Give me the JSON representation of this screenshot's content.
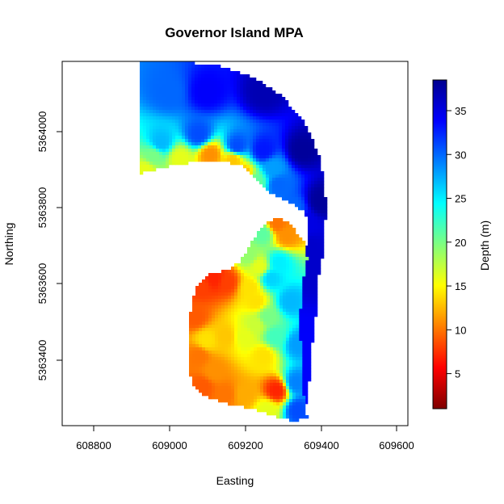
{
  "chart_data": {
    "type": "heatmap",
    "title": "Governor Island MPA",
    "xlabel": "Easting",
    "ylabel": "Northing",
    "xlim": [
      608720,
      609630
    ],
    "ylim": [
      5363240,
      5364180
    ],
    "x_ticks": [
      608800,
      609000,
      609200,
      609400,
      609600
    ],
    "y_ticks": [
      5363400,
      5363600,
      5363800,
      5364000
    ],
    "legend": {
      "label": "Depth (m)",
      "range": [
        1,
        38.5
      ],
      "ticks": [
        5,
        10,
        15,
        20,
        25,
        30,
        35
      ],
      "placement": "right",
      "colormap": [
        "#7f0000",
        "#ff0000",
        "#ff7f00",
        "#ffff00",
        "#7fff7f",
        "#00ffff",
        "#007fff",
        "#0000ff",
        "#00008f"
      ]
    },
    "regions": [
      {
        "name": "outer-arc",
        "outline": [
          [
            608925,
            5364180
          ],
          [
            609030,
            5364180
          ],
          [
            609130,
            5364170
          ],
          [
            609225,
            5364140
          ],
          [
            609300,
            5364090
          ],
          [
            609360,
            5364020
          ],
          [
            609400,
            5363930
          ],
          [
            609415,
            5363820
          ],
          [
            609410,
            5363700
          ],
          [
            609395,
            5363620
          ],
          [
            609390,
            5363540
          ],
          [
            609380,
            5363470
          ],
          [
            609375,
            5363380
          ],
          [
            609360,
            5363280
          ],
          [
            609340,
            5363260
          ],
          [
            609325,
            5363290
          ],
          [
            609330,
            5363360
          ],
          [
            609345,
            5363460
          ],
          [
            609345,
            5363570
          ],
          [
            609350,
            5363660
          ],
          [
            609370,
            5363730
          ],
          [
            609360,
            5363790
          ],
          [
            609320,
            5363815
          ],
          [
            609270,
            5363840
          ],
          [
            609235,
            5363875
          ],
          [
            609195,
            5363910
          ],
          [
            609135,
            5363925
          ],
          [
            609065,
            5363920
          ],
          [
            609000,
            5363910
          ],
          [
            608925,
            5363890
          ]
        ],
        "depth_points": [
          [
            609000,
            5364100,
            30
          ],
          [
            609100,
            5364100,
            34
          ],
          [
            609250,
            5364100,
            37
          ],
          [
            609350,
            5363950,
            38
          ],
          [
            609400,
            5363820,
            38
          ],
          [
            609390,
            5363650,
            36
          ],
          [
            609370,
            5363450,
            34
          ],
          [
            608980,
            5363970,
            27
          ],
          [
            609080,
            5363990,
            31
          ],
          [
            609180,
            5363960,
            31
          ],
          [
            609250,
            5363950,
            33
          ],
          [
            608940,
            5363900,
            16
          ],
          [
            608960,
            5363935,
            20
          ],
          [
            609030,
            5363930,
            16
          ],
          [
            609110,
            5363940,
            11
          ],
          [
            609170,
            5363925,
            13
          ],
          [
            609200,
            5363885,
            12
          ],
          [
            609230,
            5363870,
            21
          ],
          [
            609275,
            5363905,
            28
          ],
          [
            609290,
            5363860,
            30
          ],
          [
            609330,
            5363800,
            30
          ],
          [
            609360,
            5363760,
            35
          ],
          [
            609370,
            5363700,
            36
          ]
        ]
      },
      {
        "name": "island-shelf",
        "outline": [
          [
            609235,
            5363740
          ],
          [
            609265,
            5363770
          ],
          [
            609300,
            5363775
          ],
          [
            609320,
            5363760
          ],
          [
            609340,
            5363735
          ],
          [
            609360,
            5363710
          ],
          [
            609365,
            5363670
          ],
          [
            609350,
            5363600
          ],
          [
            609345,
            5363500
          ],
          [
            609350,
            5363400
          ],
          [
            609355,
            5363320
          ],
          [
            609365,
            5363260
          ],
          [
            609330,
            5363250
          ],
          [
            609280,
            5363265
          ],
          [
            609230,
            5363280
          ],
          [
            609140,
            5363300
          ],
          [
            609085,
            5363320
          ],
          [
            609060,
            5363350
          ],
          [
            609055,
            5363400
          ],
          [
            609055,
            5363500
          ],
          [
            609060,
            5363560
          ],
          [
            609080,
            5363610
          ],
          [
            609110,
            5363635
          ],
          [
            609150,
            5363640
          ],
          [
            609190,
            5363665
          ],
          [
            609210,
            5363700
          ]
        ],
        "depth_points": [
          [
            609085,
            5363600,
            8
          ],
          [
            609120,
            5363620,
            7
          ],
          [
            609155,
            5363610,
            8
          ],
          [
            609070,
            5363520,
            9
          ],
          [
            609100,
            5363460,
            14
          ],
          [
            609150,
            5363470,
            13
          ],
          [
            609200,
            5363470,
            16
          ],
          [
            609230,
            5363500,
            17
          ],
          [
            609260,
            5363520,
            20
          ],
          [
            609280,
            5363470,
            22
          ],
          [
            609215,
            5363595,
            14
          ],
          [
            609230,
            5363560,
            14
          ],
          [
            609240,
            5363650,
            16
          ],
          [
            609270,
            5363620,
            26
          ],
          [
            609290,
            5363660,
            25
          ],
          [
            609320,
            5363560,
            27
          ],
          [
            609340,
            5363450,
            28
          ],
          [
            609335,
            5363350,
            29
          ],
          [
            609340,
            5363280,
            31
          ],
          [
            609260,
            5363280,
            16
          ],
          [
            609200,
            5363320,
            12
          ],
          [
            609150,
            5363320,
            10
          ],
          [
            609090,
            5363340,
            9
          ],
          [
            609080,
            5363420,
            10
          ],
          [
            609120,
            5363380,
            11
          ],
          [
            609250,
            5363420,
            14
          ],
          [
            609285,
            5363330,
            7
          ],
          [
            609285,
            5363760,
            10
          ],
          [
            609310,
            5363730,
            11
          ],
          [
            609250,
            5363735,
            21
          ],
          [
            609210,
            5363680,
            19
          ]
        ]
      }
    ]
  },
  "labels": {
    "x_ticks": [
      "608800",
      "609000",
      "609200",
      "609400",
      "609600"
    ],
    "y_ticks": [
      "5363400",
      "5363600",
      "5363800",
      "5364000"
    ],
    "legend_ticks": [
      "5",
      "10",
      "15",
      "20",
      "25",
      "30",
      "35"
    ]
  }
}
